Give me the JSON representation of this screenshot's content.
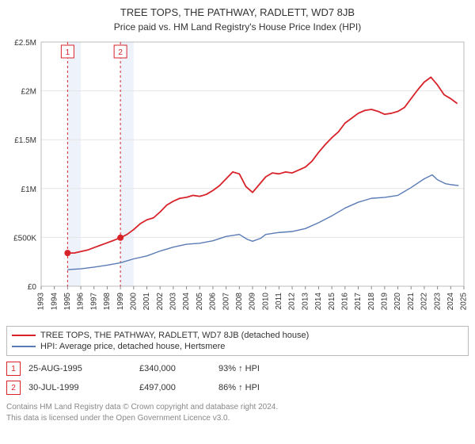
{
  "title": "TREE TOPS, THE PATHWAY, RADLETT, WD7 8JB",
  "subtitle": "Price paid vs. HM Land Registry's House Price Index (HPI)",
  "chart": {
    "type": "line",
    "background_color": "#ffffff",
    "plot_border_color": "#bbbbbb",
    "grid_color": "#e5e5e5",
    "band_color": "#eef3fb",
    "x_years": [
      1993,
      1994,
      1995,
      1996,
      1997,
      1998,
      1999,
      2000,
      2001,
      2002,
      2003,
      2004,
      2005,
      2006,
      2007,
      2008,
      2009,
      2010,
      2011,
      2012,
      2013,
      2014,
      2015,
      2016,
      2017,
      2018,
      2019,
      2020,
      2021,
      2022,
      2023,
      2024,
      2025
    ],
    "x_tick_fontsize": 10,
    "x_tick_rotation": -90,
    "y_label_prefix": "£",
    "y_ticks": [
      0,
      500000,
      1000000,
      1500000,
      2000000,
      2500000
    ],
    "y_tick_labels": [
      "£0",
      "£500K",
      "£1M",
      "£1.5M",
      "£2M",
      "£2.5M"
    ],
    "y_tick_fontsize": 10,
    "ylim": [
      0,
      2500000
    ],
    "xlim": [
      1993,
      2025
    ],
    "bands": [
      [
        1995,
        1996
      ],
      [
        1999,
        2000
      ]
    ],
    "markers": [
      {
        "id": "1",
        "x_year": 1995,
        "y": 340000,
        "box_color": "#d8232a"
      },
      {
        "id": "2",
        "x_year": 1999,
        "y": 497000,
        "box_color": "#d8232a"
      }
    ],
    "marker_dash_color": "#d8232a",
    "marker_fill": "#d8232a",
    "series": [
      {
        "name": "price_paid",
        "color": "#d8232a",
        "line_width": 1.8,
        "legend": "TREE TOPS, THE PATHWAY, RADLETT, WD7 8JB (detached house)",
        "points": [
          [
            1995.0,
            340000
          ],
          [
            1995.5,
            340000
          ],
          [
            1996.0,
            355000
          ],
          [
            1996.5,
            370000
          ],
          [
            1997.0,
            395000
          ],
          [
            1997.5,
            420000
          ],
          [
            1998.0,
            445000
          ],
          [
            1998.5,
            470000
          ],
          [
            1999.0,
            497000
          ],
          [
            1999.5,
            530000
          ],
          [
            2000.0,
            580000
          ],
          [
            2000.5,
            640000
          ],
          [
            2001.0,
            680000
          ],
          [
            2001.5,
            700000
          ],
          [
            2002.0,
            760000
          ],
          [
            2002.5,
            830000
          ],
          [
            2003.0,
            870000
          ],
          [
            2003.5,
            900000
          ],
          [
            2004.0,
            910000
          ],
          [
            2004.5,
            930000
          ],
          [
            2005.0,
            920000
          ],
          [
            2005.5,
            940000
          ],
          [
            2006.0,
            980000
          ],
          [
            2006.5,
            1030000
          ],
          [
            2007.0,
            1100000
          ],
          [
            2007.5,
            1170000
          ],
          [
            2008.0,
            1150000
          ],
          [
            2008.5,
            1020000
          ],
          [
            2009.0,
            960000
          ],
          [
            2009.5,
            1040000
          ],
          [
            2010.0,
            1120000
          ],
          [
            2010.5,
            1160000
          ],
          [
            2011.0,
            1150000
          ],
          [
            2011.5,
            1170000
          ],
          [
            2012.0,
            1160000
          ],
          [
            2012.5,
            1190000
          ],
          [
            2013.0,
            1220000
          ],
          [
            2013.5,
            1280000
          ],
          [
            2014.0,
            1370000
          ],
          [
            2014.5,
            1450000
          ],
          [
            2015.0,
            1520000
          ],
          [
            2015.5,
            1580000
          ],
          [
            2016.0,
            1670000
          ],
          [
            2016.5,
            1720000
          ],
          [
            2017.0,
            1770000
          ],
          [
            2017.5,
            1800000
          ],
          [
            2018.0,
            1810000
          ],
          [
            2018.5,
            1790000
          ],
          [
            2019.0,
            1760000
          ],
          [
            2019.5,
            1770000
          ],
          [
            2020.0,
            1790000
          ],
          [
            2020.5,
            1830000
          ],
          [
            2021.0,
            1920000
          ],
          [
            2021.5,
            2010000
          ],
          [
            2022.0,
            2090000
          ],
          [
            2022.5,
            2140000
          ],
          [
            2023.0,
            2060000
          ],
          [
            2023.5,
            1960000
          ],
          [
            2024.0,
            1920000
          ],
          [
            2024.5,
            1870000
          ]
        ]
      },
      {
        "name": "hpi",
        "color": "#5a7bb5",
        "line_width": 1.4,
        "legend": "HPI: Average price, detached house, Hertsmere",
        "points": [
          [
            1995.0,
            170000
          ],
          [
            1996.0,
            178000
          ],
          [
            1997.0,
            195000
          ],
          [
            1998.0,
            216000
          ],
          [
            1999.0,
            240000
          ],
          [
            2000.0,
            280000
          ],
          [
            2001.0,
            310000
          ],
          [
            2002.0,
            360000
          ],
          [
            2003.0,
            400000
          ],
          [
            2004.0,
            430000
          ],
          [
            2005.0,
            440000
          ],
          [
            2006.0,
            465000
          ],
          [
            2007.0,
            510000
          ],
          [
            2008.0,
            530000
          ],
          [
            2008.6,
            480000
          ],
          [
            2009.0,
            460000
          ],
          [
            2009.6,
            490000
          ],
          [
            2010.0,
            530000
          ],
          [
            2011.0,
            550000
          ],
          [
            2012.0,
            560000
          ],
          [
            2013.0,
            590000
          ],
          [
            2014.0,
            650000
          ],
          [
            2015.0,
            720000
          ],
          [
            2016.0,
            800000
          ],
          [
            2017.0,
            860000
          ],
          [
            2018.0,
            900000
          ],
          [
            2019.0,
            910000
          ],
          [
            2020.0,
            930000
          ],
          [
            2021.0,
            1010000
          ],
          [
            2022.0,
            1100000
          ],
          [
            2022.6,
            1140000
          ],
          [
            2023.0,
            1090000
          ],
          [
            2023.6,
            1050000
          ],
          [
            2024.0,
            1040000
          ],
          [
            2024.6,
            1030000
          ]
        ]
      }
    ]
  },
  "legend": {
    "series1_label": "TREE TOPS, THE PATHWAY, RADLETT, WD7 8JB (detached house)",
    "series2_label": "HPI: Average price, detached house, Hertsmere",
    "series1_color": "#d8232a",
    "series2_color": "#5a7bb5"
  },
  "transactions": [
    {
      "id": "1",
      "box_color": "#d8232a",
      "date": "25-AUG-1995",
      "price": "£340,000",
      "pct": "93% ↑ HPI"
    },
    {
      "id": "2",
      "box_color": "#d8232a",
      "date": "30-JUL-1999",
      "price": "£497,000",
      "pct": "86% ↑ HPI"
    }
  ],
  "license_line1": "Contains HM Land Registry data © Crown copyright and database right 2024.",
  "license_line2": "This data is licensed under the Open Government Licence v3.0."
}
